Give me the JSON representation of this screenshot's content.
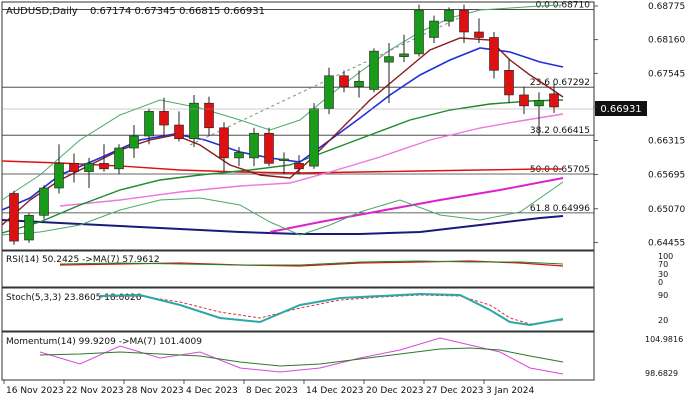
{
  "header": {
    "symbol": "AUDUSD,Daily",
    "ohlc": "0.67174 0.67345 0.66815 0.66931"
  },
  "panels": {
    "rsi_label": "RSI(14) 50.2425  ->MA(7) 57.9612",
    "stoch_label": "Stoch(5,3,3) 23.8605 18.0026",
    "momentum_label": "Momentum(14) 99.9209  ->MA(7) 101.4009"
  },
  "colors": {
    "bull": "#1a9a1a",
    "bear": "#dd1111",
    "ma_fast_bear": "#8b1a1a",
    "ma_blue": "#1f2fdd",
    "ma_green": "#1a8a2a",
    "ma_pink": "#ee77dd",
    "ma_red": "#dd1111",
    "ma_navy": "#1a1a7a",
    "bb": "#4aa86a",
    "trend_pink": "#dd22cc",
    "stoch_main": "#2aa8a8",
    "stoch_signal": "#dd3333",
    "momentum": "#dd44dd",
    "momentum_ma": "#2a7a2a",
    "current_price_box": "#111111"
  },
  "chart_data": {
    "type": "candlestick",
    "ylim": [
      0.64445,
      0.68775
    ],
    "y_ticks": [
      "0.68775",
      "0.68160",
      "0.67545",
      "0.66931",
      "0.66315",
      "0.65695",
      "0.65070",
      "0.64455"
    ],
    "current_price": "0.66931",
    "x_ticks": [
      "16 Nov 2023",
      "22 Nov 2023",
      "28 Nov 2023",
      "4 Dec 2023",
      "8 Dec 2023",
      "14 Dec 2023",
      "20 Dec 2023",
      "27 Dec 2023",
      "3 Jan 2024"
    ],
    "x_tick_index": [
      0,
      4,
      8,
      12,
      16,
      20,
      24,
      28,
      32
    ],
    "fib_levels": [
      {
        "label": "0.0 0.68710",
        "value": 0.6871
      },
      {
        "label": "23.6 0.67292",
        "value": 0.67292
      },
      {
        "label": "38.2 0.66415",
        "value": 0.66415
      },
      {
        "label": "50.0 0.65705",
        "value": 0.65705
      },
      {
        "label": "61.8 0.64996",
        "value": 0.64996
      }
    ],
    "candles": [
      [
        0.6535,
        0.654,
        0.6441,
        0.6448
      ],
      [
        0.645,
        0.65,
        0.6445,
        0.6495
      ],
      [
        0.6495,
        0.655,
        0.6488,
        0.6545
      ],
      [
        0.6545,
        0.6625,
        0.6535,
        0.659
      ],
      [
        0.659,
        0.6608,
        0.6555,
        0.6575
      ],
      [
        0.6575,
        0.66,
        0.6545,
        0.659
      ],
      [
        0.659,
        0.6625,
        0.6575,
        0.658
      ],
      [
        0.658,
        0.6625,
        0.657,
        0.6618
      ],
      [
        0.6618,
        0.666,
        0.66,
        0.664
      ],
      [
        0.664,
        0.669,
        0.6625,
        0.6685
      ],
      [
        0.6685,
        0.671,
        0.664,
        0.666
      ],
      [
        0.666,
        0.6685,
        0.663,
        0.6635
      ],
      [
        0.6635,
        0.6715,
        0.662,
        0.67
      ],
      [
        0.67,
        0.6712,
        0.664,
        0.6655
      ],
      [
        0.6655,
        0.6665,
        0.6575,
        0.66
      ],
      [
        0.66,
        0.662,
        0.6585,
        0.661
      ],
      [
        0.66,
        0.6655,
        0.6585,
        0.6645
      ],
      [
        0.6645,
        0.6655,
        0.6585,
        0.659
      ],
      [
        0.6595,
        0.661,
        0.657,
        0.6598
      ],
      [
        0.659,
        0.6605,
        0.657,
        0.658
      ],
      [
        0.6585,
        0.67,
        0.658,
        0.669
      ],
      [
        0.669,
        0.6765,
        0.668,
        0.675
      ],
      [
        0.675,
        0.676,
        0.672,
        0.673
      ],
      [
        0.673,
        0.676,
        0.671,
        0.674
      ],
      [
        0.6725,
        0.68,
        0.672,
        0.6795
      ],
      [
        0.6775,
        0.681,
        0.67,
        0.6785
      ],
      [
        0.6785,
        0.6825,
        0.6775,
        0.679
      ],
      [
        0.679,
        0.688,
        0.6785,
        0.687
      ],
      [
        0.682,
        0.686,
        0.681,
        0.685
      ],
      [
        0.685,
        0.6875,
        0.684,
        0.687
      ],
      [
        0.687,
        0.688,
        0.681,
        0.683
      ],
      [
        0.683,
        0.6855,
        0.681,
        0.682
      ],
      [
        0.682,
        0.683,
        0.6745,
        0.676
      ],
      [
        0.676,
        0.678,
        0.67,
        0.6715
      ],
      [
        0.6715,
        0.673,
        0.668,
        0.6695
      ],
      [
        0.6695,
        0.672,
        0.664,
        0.6705
      ],
      [
        0.6717,
        0.6735,
        0.6682,
        0.6693
      ]
    ]
  }
}
